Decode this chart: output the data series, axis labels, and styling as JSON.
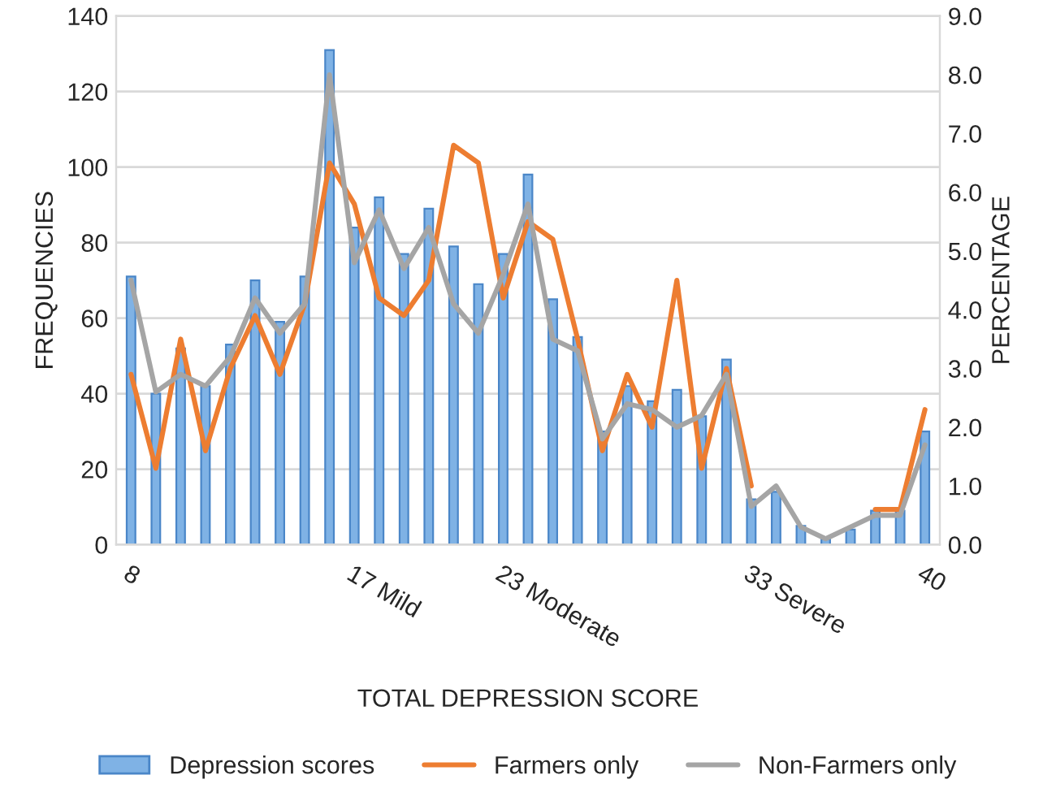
{
  "chart_data": {
    "type": "bar",
    "xlabel": "TOTAL DEPRESSION SCORE",
    "ylabel": "FREQUENCIES",
    "y2label": "PERCENTAGE",
    "categories": [
      "8",
      null,
      null,
      null,
      null,
      null,
      null,
      null,
      null,
      "17 Mild",
      null,
      null,
      null,
      null,
      null,
      "23 Moderate",
      null,
      null,
      null,
      null,
      null,
      null,
      null,
      null,
      null,
      "33 Severe",
      null,
      null,
      null,
      null,
      null,
      null,
      "40"
    ],
    "series": [
      {
        "name": "Depression scores",
        "color": "#7fb2e5",
        "values": [
          71,
          40,
          52,
          42,
          53,
          70,
          59,
          71,
          131,
          84,
          92,
          77,
          89,
          79,
          69,
          77,
          98,
          65,
          55,
          30,
          42,
          38,
          41,
          34,
          49,
          12,
          14,
          5,
          1.4,
          4,
          9,
          9,
          30
        ]
      },
      {
        "name": "Farmers only",
        "type": "line",
        "axis": "y2",
        "color": "#ed7d31",
        "values": [
          2.9,
          1.3,
          3.5,
          1.6,
          3.0,
          3.9,
          2.9,
          4.1,
          6.5,
          5.8,
          4.2,
          3.9,
          4.5,
          6.8,
          6.5,
          4.2,
          5.5,
          5.2,
          3.5,
          1.6,
          2.9,
          2.0,
          4.5,
          1.3,
          3.0,
          1.0,
          null,
          null,
          null,
          null,
          0.6,
          0.6,
          2.3
        ]
      },
      {
        "name": "Non-Farmers only",
        "type": "line",
        "axis": "y2",
        "color": "#a5a5a5",
        "values": [
          4.5,
          2.6,
          2.9,
          2.7,
          3.2,
          4.2,
          3.6,
          4.1,
          8.0,
          4.8,
          5.7,
          4.7,
          5.4,
          4.1,
          3.6,
          4.6,
          5.8,
          3.5,
          3.3,
          1.8,
          2.4,
          2.3,
          2.0,
          2.2,
          2.9,
          0.65,
          1.0,
          0.3,
          0.1,
          0.3,
          0.5,
          0.5,
          1.7
        ]
      }
    ],
    "ylim": [
      0,
      140
    ],
    "yticks": [
      0,
      20,
      40,
      60,
      80,
      100,
      120,
      140
    ],
    "y2lim": [
      0,
      9
    ],
    "y2ticks": [
      {
        "value": 0,
        "label": "0.0"
      },
      {
        "value": 1,
        "label": "1.0"
      },
      {
        "value": 2,
        "label": "2.0"
      },
      {
        "value": 3,
        "label": "3.0"
      },
      {
        "value": 4,
        "label": "4.0"
      },
      {
        "value": 5,
        "label": "5.0"
      },
      {
        "value": 6,
        "label": "6.0"
      },
      {
        "value": 7,
        "label": "7.0"
      },
      {
        "value": 8,
        "label": "8.0"
      },
      {
        "value": 9,
        "label": "9.0"
      }
    ],
    "grid": "y",
    "legend": "bottom",
    "marker": "none",
    "line_style": "solid"
  }
}
